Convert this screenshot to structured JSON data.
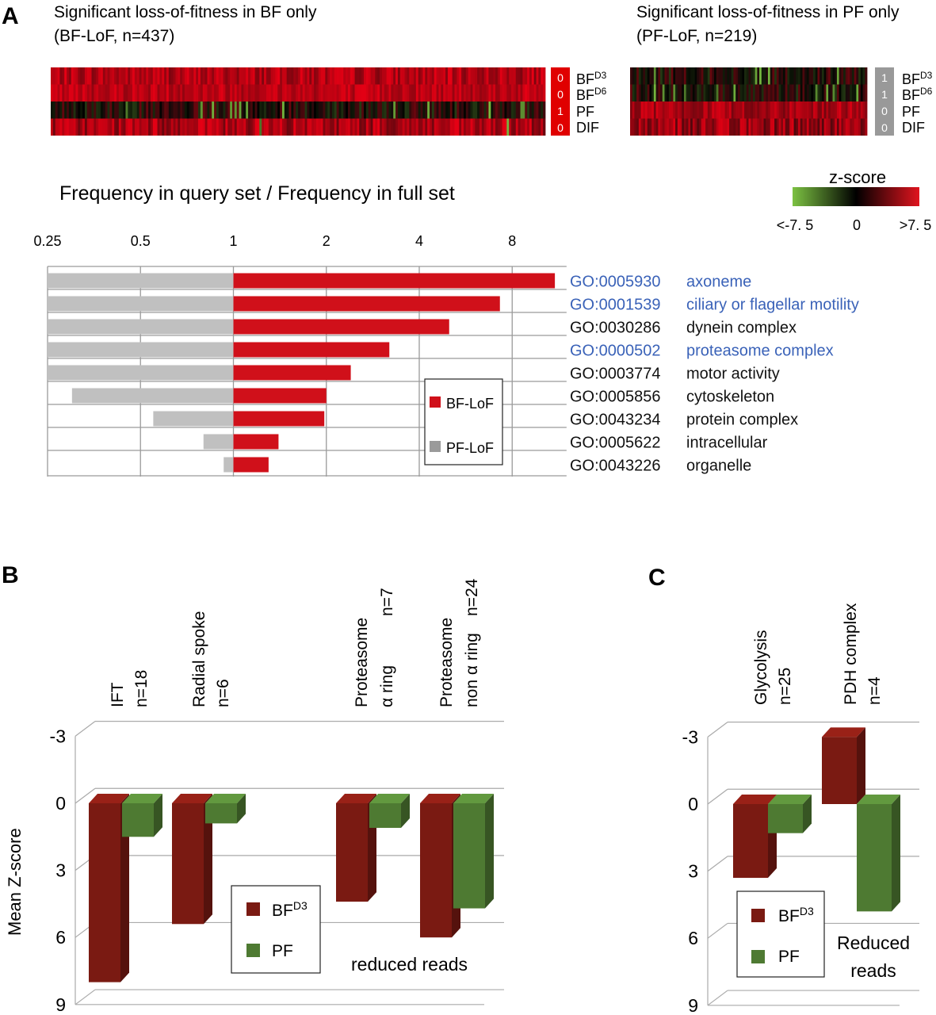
{
  "panels": {
    "a": "A",
    "b": "B",
    "c": "C"
  },
  "heatmaps": [
    {
      "title": "Significant loss-of-fitness in BF only",
      "subtitle": "(BF-LoF, n=437)",
      "badge_color": "#e00000",
      "rows": [
        {
          "label": "BF",
          "sup": "D3",
          "badge": "0"
        },
        {
          "label": "BF",
          "sup": "D6",
          "badge": "0"
        },
        {
          "label": "PF",
          "sup": "",
          "badge": "1"
        },
        {
          "label": "DIF",
          "sup": "",
          "badge": "0"
        }
      ]
    },
    {
      "title": "Significant loss-of-fitness in PF only",
      "subtitle": "(PF-LoF, n=219)",
      "badge_color": "#999999",
      "rows": [
        {
          "label": "BF",
          "sup": "D3",
          "badge": "1"
        },
        {
          "label": "BF",
          "sup": "D6",
          "badge": "1"
        },
        {
          "label": "PF",
          "sup": "",
          "badge": "0"
        },
        {
          "label": "DIF",
          "sup": "",
          "badge": "0"
        }
      ]
    }
  ],
  "colorbar": {
    "title": "z-score",
    "min_label": "<-7. 5",
    "mid_label": "0",
    "max_label": ">7. 5",
    "colors": [
      "#7cc242",
      "#000000",
      "#e0141e"
    ]
  },
  "colors": {
    "bf_lof": "#d0101a",
    "pf_lof": "#c0c0c0",
    "go_blue": "#3a62b8",
    "bf_d3": "#7a1a12",
    "pf": "#4e7a32",
    "grid": "#9a9a9a"
  },
  "chart_data": [
    {
      "type": "bar",
      "orientation": "horizontal",
      "title": "Frequency in query set / Frequency in full set",
      "xscale": "log2",
      "xlim": [
        0.25,
        12
      ],
      "ticks": [
        "0.25",
        "0.5",
        "1",
        "2",
        "4",
        "8"
      ],
      "categories": [
        {
          "id": "GO:0005930",
          "term": "axoneme",
          "highlight": true
        },
        {
          "id": "GO:0001539",
          "term": "ciliary or flagellar motility",
          "highlight": true
        },
        {
          "id": "GO:0030286",
          "term": "dynein complex",
          "highlight": false
        },
        {
          "id": "GO:0000502",
          "term": "proteasome complex",
          "highlight": true
        },
        {
          "id": "GO:0003774",
          "term": "motor activity",
          "highlight": false
        },
        {
          "id": "GO:0005856",
          "term": "cytoskeleton",
          "highlight": false
        },
        {
          "id": "GO:0043234",
          "term": "protein complex",
          "highlight": false
        },
        {
          "id": "GO:0005622",
          "term": "intracellular",
          "highlight": false
        },
        {
          "id": "GO:0043226",
          "term": "organelle",
          "highlight": false
        }
      ],
      "series": [
        {
          "name": "BF-LoF",
          "values": [
            11.0,
            7.3,
            5.0,
            3.2,
            2.4,
            2.0,
            1.97,
            1.4,
            1.3
          ]
        },
        {
          "name": "PF-LoF",
          "values": [
            0.25,
            0.25,
            0.25,
            0.25,
            0.25,
            0.3,
            0.55,
            0.8,
            0.93
          ]
        }
      ],
      "legend": "inside-right"
    },
    {
      "type": "bar",
      "ylabel": "Mean Z-score",
      "ylim": [
        -3,
        9
      ],
      "inverted": true,
      "yticks": [
        "-3",
        "0",
        "3",
        "6",
        "9"
      ],
      "categories": [
        {
          "name": "IFT",
          "n": "n=18"
        },
        {
          "name": "Radial spoke",
          "n": "n=6"
        },
        {
          "name": "Proteasome α ring",
          "n": "n=7",
          "line1": "Proteasome",
          "line2": "α ring"
        },
        {
          "name": "Proteasome non α ring",
          "n": "n=24",
          "line1": "Proteasome",
          "line2": "non α ring"
        }
      ],
      "series": [
        {
          "name": "BFD3",
          "values": [
            8.0,
            5.4,
            4.4,
            6.0
          ]
        },
        {
          "name": "PF",
          "values": [
            1.5,
            0.9,
            1.1,
            4.7
          ]
        }
      ],
      "annotation": "reduced reads",
      "legend": "bottom-center"
    },
    {
      "type": "bar",
      "ylim": [
        -3,
        9
      ],
      "inverted": true,
      "yticks": [
        "-3",
        "0",
        "3",
        "6",
        "9"
      ],
      "categories": [
        {
          "name": "Glycolysis",
          "n": "n=25"
        },
        {
          "name": "PDH complex",
          "n": "n=4"
        }
      ],
      "series": [
        {
          "name": "BFD3",
          "values": [
            3.3,
            -3.0
          ]
        },
        {
          "name": "PF",
          "values": [
            1.3,
            4.8
          ]
        }
      ],
      "annotation_line1": "Reduced",
      "annotation_line2": "reads",
      "legend": "bottom-left"
    }
  ],
  "legend_labels": {
    "bf_lof": "BF-LoF",
    "pf_lof": "PF-LoF",
    "bf": "BF",
    "bf_sup": "D3",
    "pf": "PF"
  }
}
